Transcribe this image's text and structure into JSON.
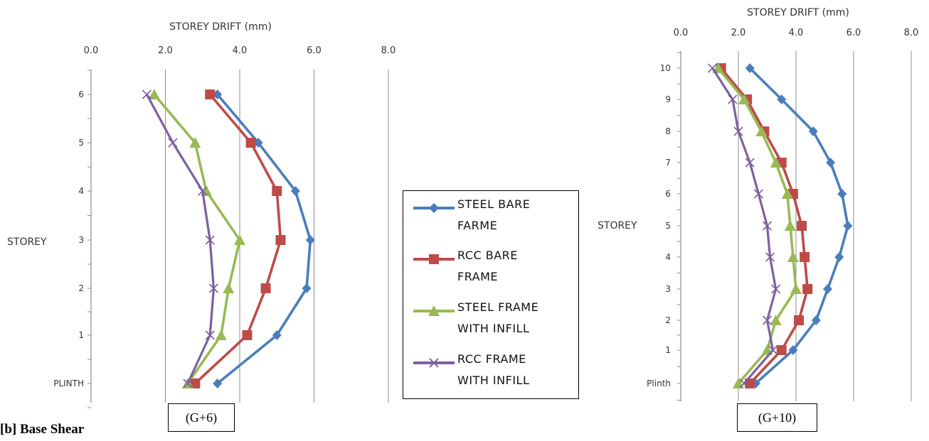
{
  "chart_data": [
    {
      "type": "line",
      "title": "",
      "xlabel": "STOREY DRIFT (mm)",
      "ylabel": "STOREY",
      "xlim": [
        0,
        8
      ],
      "xticks": [
        "0.0",
        "2.0",
        "4.0",
        "6.0",
        "8.0"
      ],
      "categories": [
        "PLINTH",
        "1",
        "2",
        "3",
        "4",
        "5",
        "6"
      ],
      "grid": "vertical",
      "series": [
        {
          "name": "STEEL BARE FARME",
          "values": [
            3.4,
            5.0,
            5.8,
            5.9,
            5.5,
            4.5,
            3.4
          ]
        },
        {
          "name": "RCC BARE FRAME",
          "values": [
            2.8,
            4.2,
            4.7,
            5.1,
            5.0,
            4.3,
            3.2
          ]
        },
        {
          "name": "STEEL FRAME WITH INFILL",
          "values": [
            2.6,
            3.5,
            3.7,
            4.0,
            3.1,
            2.8,
            1.7
          ]
        },
        {
          "name": "RCC FRAME WITH INFILL",
          "values": [
            2.6,
            3.2,
            3.3,
            3.2,
            3.0,
            2.2,
            1.5
          ]
        }
      ],
      "caption": "(G+6)"
    },
    {
      "type": "line",
      "title": "",
      "xlabel": "STOREY DRIFT (mm)",
      "ylabel": "STOREY",
      "xlim": [
        0,
        8
      ],
      "xticks": [
        "0.0",
        "2.0",
        "4.0",
        "6.0",
        "8.0"
      ],
      "categories": [
        "Plinth",
        "1",
        "2",
        "3",
        "4",
        "5",
        "6",
        "7",
        "8",
        "9",
        "10"
      ],
      "grid": "vertical",
      "series": [
        {
          "name": "STEEL BARE FARME",
          "values": [
            2.6,
            3.9,
            4.7,
            5.1,
            5.5,
            5.8,
            5.6,
            5.2,
            4.6,
            3.5,
            2.4
          ]
        },
        {
          "name": "RCC BARE FRAME",
          "values": [
            2.4,
            3.5,
            4.1,
            4.4,
            4.3,
            4.2,
            3.9,
            3.5,
            2.9,
            2.3,
            1.4
          ]
        },
        {
          "name": "STEEL FRAME WITH INFILL",
          "values": [
            2.0,
            3.0,
            3.3,
            4.0,
            3.9,
            3.8,
            3.7,
            3.3,
            2.8,
            2.2,
            1.3
          ]
        },
        {
          "name": "RCC FRAME WITH INFILL",
          "values": [
            2.2,
            3.2,
            3.0,
            3.3,
            3.1,
            3.0,
            2.7,
            2.4,
            2.0,
            1.8,
            1.1
          ]
        }
      ],
      "caption": "(G+10)"
    }
  ],
  "legend": [
    {
      "line1": "STEEL BARE",
      "line2": "FARME",
      "color": "#4a7ebb",
      "marker": "diamond"
    },
    {
      "line1": "RCC BARE",
      "line2": "FRAME",
      "color": "#be4b48",
      "marker": "square"
    },
    {
      "line1": "STEEL FRAME",
      "line2": "WITH INFILL",
      "color": "#98b954",
      "marker": "triangle"
    },
    {
      "line1": "RCC FRAME",
      "line2": "WITH INFILL",
      "color": "#7d60a0",
      "marker": "x"
    }
  ],
  "captions": {
    "left": "(G+6)",
    "right": "(G+10)"
  },
  "section_label": "[b] Base Shear"
}
